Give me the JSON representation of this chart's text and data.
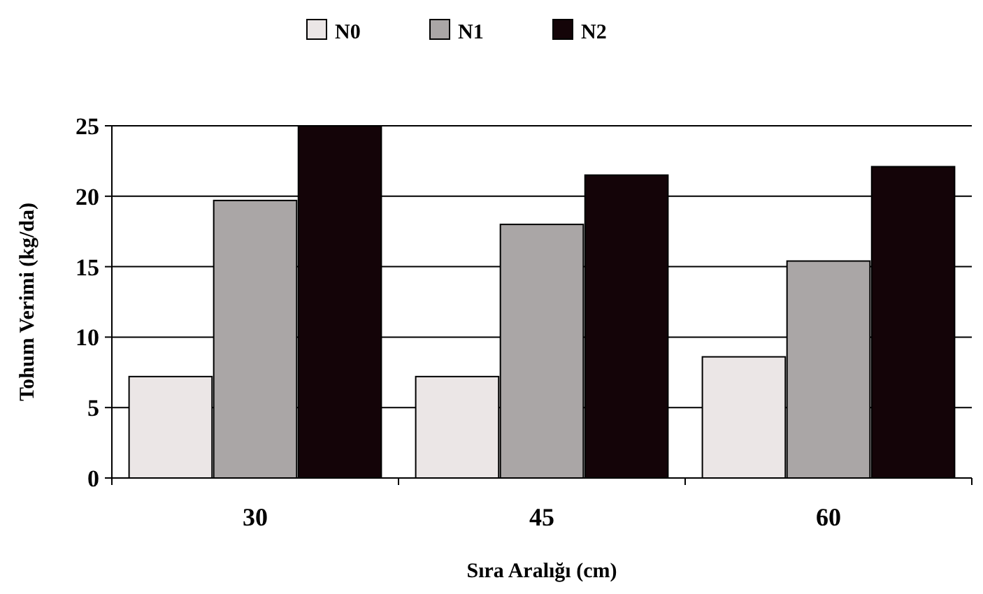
{
  "chart_data": {
    "type": "bar",
    "xlabel": "Sıra Aralığı (cm)",
    "ylabel": "Tohum Verimi (kg/da)",
    "categories": [
      "30",
      "45",
      "60"
    ],
    "series": [
      {
        "name": "N0",
        "color": "#ebe6e6",
        "values": [
          7.2,
          7.2,
          8.6
        ]
      },
      {
        "name": "N1",
        "color": "#aaa6a6",
        "values": [
          19.7,
          18.0,
          15.4
        ]
      },
      {
        "name": "N2",
        "color": "#140408",
        "values": [
          25,
          21.5,
          22.1
        ]
      }
    ],
    "ylim": [
      0,
      25
    ],
    "yticks": [
      0,
      5,
      10,
      15,
      20,
      25
    ],
    "grid": "y",
    "legend": "top"
  }
}
